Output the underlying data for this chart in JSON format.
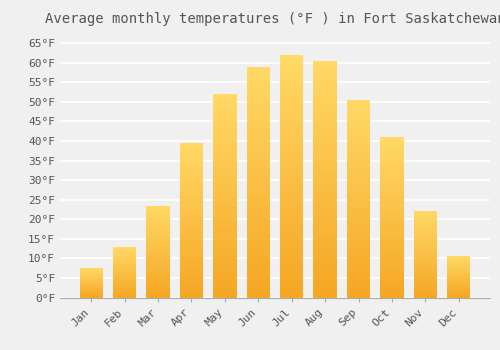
{
  "title": "Average monthly temperatures (°F ) in Fort Saskatchewan",
  "months": [
    "Jan",
    "Feb",
    "Mar",
    "Apr",
    "May",
    "Jun",
    "Jul",
    "Aug",
    "Sep",
    "Oct",
    "Nov",
    "Dec"
  ],
  "values": [
    7.5,
    13,
    23.5,
    39.5,
    52,
    59,
    62,
    60.5,
    50.5,
    41,
    22,
    10.5
  ],
  "bar_color_bottom": "#F5A623",
  "bar_color_top": "#FFD966",
  "background_color": "#f0f0f0",
  "grid_color": "#ffffff",
  "text_color": "#555555",
  "ylim": [
    0,
    68
  ],
  "yticks": [
    0,
    5,
    10,
    15,
    20,
    25,
    30,
    35,
    40,
    45,
    50,
    55,
    60,
    65
  ],
  "title_fontsize": 10,
  "tick_fontsize": 8,
  "font_family": "monospace"
}
